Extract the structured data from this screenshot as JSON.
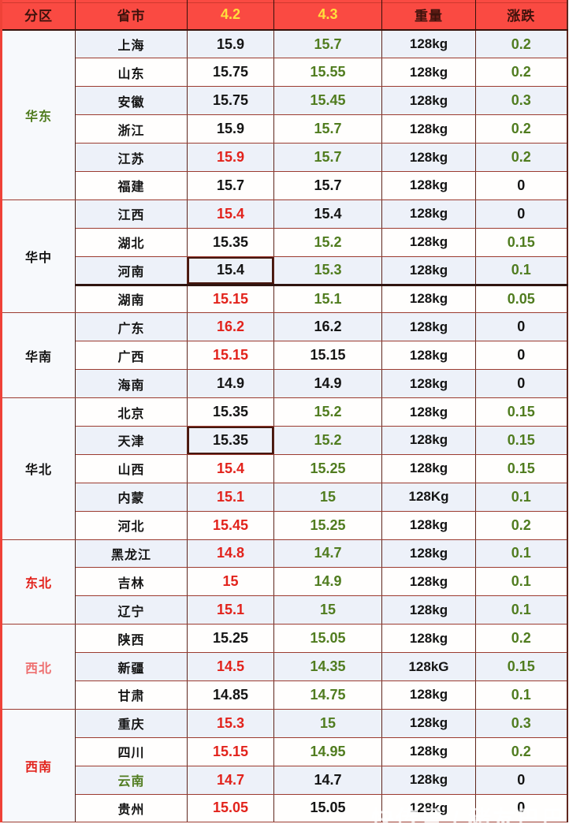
{
  "watermark": {
    "text": "快传号 / 猪友巴巴"
  },
  "palette": {
    "header_bg": "#fa4a42",
    "header_text": "#3d120c",
    "header_date_text": "#ffdf3c",
    "value_red": "#e2231c",
    "value_green": "#507c1f",
    "value_black": "#141414",
    "region_pink": "#ee6f6f",
    "stripe_blue": "#edf1f9",
    "stripe_white": "#fffefd"
  },
  "chart_data": {
    "type": "table",
    "columns": [
      "分区",
      "省市",
      "4.2",
      "4.3",
      "重量",
      "涨跌"
    ],
    "regions": [
      {
        "name": "华东",
        "color": "green",
        "rows": [
          {
            "province": "上海",
            "provinceColor": "black",
            "d1": "15.9",
            "d1Color": "black",
            "d2": "15.7",
            "d2Color": "green",
            "weight": "128kg",
            "change": "0.2",
            "changeColor": "green"
          },
          {
            "province": "山东",
            "provinceColor": "black",
            "d1": "15.75",
            "d1Color": "black",
            "d2": "15.55",
            "d2Color": "green",
            "weight": "128kg",
            "change": "0.2",
            "changeColor": "green"
          },
          {
            "province": "安徽",
            "provinceColor": "black",
            "d1": "15.75",
            "d1Color": "black",
            "d2": "15.45",
            "d2Color": "green",
            "weight": "128kg",
            "change": "0.3",
            "changeColor": "green"
          },
          {
            "province": "浙江",
            "provinceColor": "black",
            "d1": "15.9",
            "d1Color": "black",
            "d2": "15.7",
            "d2Color": "green",
            "weight": "128kg",
            "change": "0.2",
            "changeColor": "green"
          },
          {
            "province": "江苏",
            "provinceColor": "black",
            "d1": "15.9",
            "d1Color": "red",
            "d2": "15.7",
            "d2Color": "green",
            "weight": "128kg",
            "change": "0.2",
            "changeColor": "green"
          },
          {
            "province": "福建",
            "provinceColor": "black",
            "d1": "15.7",
            "d1Color": "black",
            "d2": "15.7",
            "d2Color": "black",
            "weight": "128kg",
            "change": "0",
            "changeColor": "black"
          }
        ]
      },
      {
        "name": "华中",
        "color": "black",
        "rows": [
          {
            "province": "江西",
            "provinceColor": "black",
            "d1": "15.4",
            "d1Color": "red",
            "d2": "15.4",
            "d2Color": "black",
            "weight": "128kg",
            "change": "0",
            "changeColor": "black"
          },
          {
            "province": "湖北",
            "provinceColor": "black",
            "d1": "15.35",
            "d1Color": "black",
            "d2": "15.2",
            "d2Color": "green",
            "weight": "128kg",
            "change": "0.15",
            "changeColor": "green"
          },
          {
            "province": "河南",
            "provinceColor": "black",
            "d1": "15.4",
            "d1Color": "black",
            "d1Boxed": true,
            "thickBottom": true,
            "d2": "15.3",
            "d2Color": "green",
            "weight": "128kg",
            "change": "0.1",
            "changeColor": "green"
          },
          {
            "province": "湖南",
            "provinceColor": "black",
            "d1": "15.15",
            "d1Color": "red",
            "d2": "15.1",
            "d2Color": "green",
            "weight": "128kg",
            "change": "0.05",
            "changeColor": "green"
          }
        ]
      },
      {
        "name": "华南",
        "color": "black",
        "rows": [
          {
            "province": "广东",
            "provinceColor": "black",
            "d1": "16.2",
            "d1Color": "red",
            "d2": "16.2",
            "d2Color": "black",
            "weight": "128kg",
            "change": "0",
            "changeColor": "black"
          },
          {
            "province": "广西",
            "provinceColor": "black",
            "d1": "15.15",
            "d1Color": "red",
            "d2": "15.15",
            "d2Color": "black",
            "weight": "128kg",
            "change": "0",
            "changeColor": "black"
          },
          {
            "province": "海南",
            "provinceColor": "black",
            "d1": "14.9",
            "d1Color": "black",
            "d2": "14.9",
            "d2Color": "black",
            "weight": "128kg",
            "change": "0",
            "changeColor": "black"
          }
        ]
      },
      {
        "name": "华北",
        "color": "black",
        "rows": [
          {
            "province": "北京",
            "provinceColor": "black",
            "d1": "15.35",
            "d1Color": "black",
            "d2": "15.2",
            "d2Color": "green",
            "weight": "128kg",
            "change": "0.15",
            "changeColor": "green"
          },
          {
            "province": "天津",
            "provinceColor": "black",
            "d1": "15.35",
            "d1Color": "black",
            "d1Boxed": true,
            "d2": "15.2",
            "d2Color": "green",
            "weight": "128kg",
            "change": "0.15",
            "changeColor": "green"
          },
          {
            "province": "山西",
            "provinceColor": "black",
            "d1": "15.4",
            "d1Color": "red",
            "d2": "15.25",
            "d2Color": "green",
            "weight": "128kg",
            "change": "0.15",
            "changeColor": "green"
          },
          {
            "province": "内蒙",
            "provinceColor": "black",
            "d1": "15.1",
            "d1Color": "red",
            "d2": "15",
            "d2Color": "green",
            "weight": "128Kg",
            "change": "0.1",
            "changeColor": "green"
          },
          {
            "province": "河北",
            "provinceColor": "black",
            "d1": "15.45",
            "d1Color": "red",
            "d2": "15.25",
            "d2Color": "green",
            "weight": "128kg",
            "change": "0.2",
            "changeColor": "green"
          }
        ]
      },
      {
        "name": "东北",
        "color": "red",
        "rows": [
          {
            "province": "黑龙江",
            "provinceColor": "black",
            "d1": "14.8",
            "d1Color": "red",
            "d2": "14.7",
            "d2Color": "green",
            "weight": "128kg",
            "change": "0.1",
            "changeColor": "green"
          },
          {
            "province": "吉林",
            "provinceColor": "black",
            "d1": "15",
            "d1Color": "red",
            "d2": "14.9",
            "d2Color": "green",
            "weight": "128kg",
            "change": "0.1",
            "changeColor": "green"
          },
          {
            "province": "辽宁",
            "provinceColor": "black",
            "d1": "15.1",
            "d1Color": "red",
            "d2": "15",
            "d2Color": "green",
            "weight": "128kg",
            "change": "0.1",
            "changeColor": "green"
          }
        ]
      },
      {
        "name": "西北",
        "color": "pink",
        "rows": [
          {
            "province": "陕西",
            "provinceColor": "black",
            "d1": "15.25",
            "d1Color": "black",
            "d2": "15.05",
            "d2Color": "green",
            "weight": "128kg",
            "change": "0.2",
            "changeColor": "green"
          },
          {
            "province": "新疆",
            "provinceColor": "black",
            "d1": "14.5",
            "d1Color": "red",
            "d2": "14.35",
            "d2Color": "green",
            "weight": "128kG",
            "change": "0.15",
            "changeColor": "green"
          },
          {
            "province": "甘肃",
            "provinceColor": "black",
            "d1": "14.85",
            "d1Color": "black",
            "d2": "14.75",
            "d2Color": "green",
            "weight": "128kg",
            "change": "0.1",
            "changeColor": "green"
          }
        ]
      },
      {
        "name": "西南",
        "color": "red",
        "rows": [
          {
            "province": "重庆",
            "provinceColor": "black",
            "d1": "15.3",
            "d1Color": "red",
            "d2": "15",
            "d2Color": "green",
            "weight": "128kg",
            "change": "0.3",
            "changeColor": "green"
          },
          {
            "province": "四川",
            "provinceColor": "black",
            "d1": "15.15",
            "d1Color": "red",
            "d2": "14.95",
            "d2Color": "green",
            "weight": "128kg",
            "change": "0.2",
            "changeColor": "green"
          },
          {
            "province": "云南",
            "provinceColor": "green",
            "d1": "14.7",
            "d1Color": "red",
            "d2": "14.7",
            "d2Color": "black",
            "weight": "128kg",
            "change": "0",
            "changeColor": "black"
          },
          {
            "province": "贵州",
            "provinceColor": "black",
            "d1": "15.05",
            "d1Color": "red",
            "d2": "15.05",
            "d2Color": "black",
            "weight": "128kg",
            "change": "0",
            "changeColor": "black"
          }
        ]
      }
    ]
  }
}
